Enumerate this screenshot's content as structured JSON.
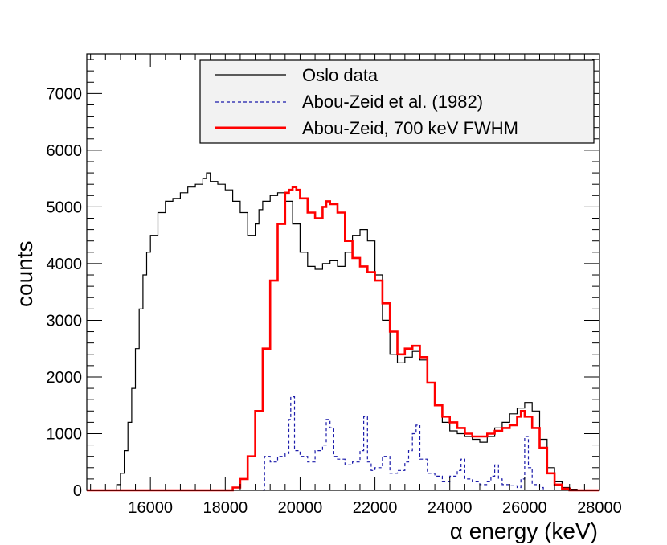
{
  "chart_data": {
    "type": "line",
    "style": "step-histogram",
    "xlabel": "α energy (keV)",
    "ylabel": "counts",
    "xlim": [
      14300,
      28000
    ],
    "ylim": [
      0,
      7700
    ],
    "xticks": [
      16000,
      18000,
      20000,
      22000,
      24000,
      26000,
      28000
    ],
    "xtick_labels": [
      "16000",
      "18000",
      "20000",
      "22000",
      "24000",
      "26000",
      "28000"
    ],
    "yticks": [
      0,
      1000,
      2000,
      3000,
      4000,
      5000,
      6000,
      7000
    ],
    "ytick_labels": [
      "0",
      "1000",
      "2000",
      "3000",
      "4000",
      "5000",
      "6000",
      "7000"
    ],
    "legend_position": "top-right",
    "series": [
      {
        "name": "Oslo data",
        "color": "#000000",
        "style": "solid",
        "x": [
          14300,
          15000,
          15100,
          15200,
          15300,
          15400,
          15500,
          15600,
          15700,
          15800,
          15900,
          16000,
          16200,
          16400,
          16600,
          16800,
          17000,
          17200,
          17400,
          17500,
          17600,
          17800,
          18000,
          18200,
          18400,
          18600,
          18800,
          18900,
          19000,
          19200,
          19400,
          19600,
          19800,
          20000,
          20200,
          20400,
          20600,
          20800,
          21000,
          21200,
          21400,
          21600,
          21800,
          22000,
          22200,
          22400,
          22600,
          22800,
          23000,
          23200,
          23400,
          23600,
          23800,
          24000,
          24200,
          24400,
          24600,
          24800,
          25000,
          25200,
          25400,
          25600,
          25800,
          26000,
          26200,
          26400,
          26600,
          26800,
          27000,
          27200,
          27400,
          27600,
          28000
        ],
        "y": [
          0,
          0,
          100,
          300,
          700,
          1200,
          1800,
          2500,
          3200,
          3800,
          4200,
          4500,
          4900,
          5100,
          5150,
          5250,
          5350,
          5400,
          5500,
          5600,
          5450,
          5400,
          5300,
          5100,
          4900,
          4500,
          4700,
          4950,
          5100,
          5200,
          5250,
          5100,
          4700,
          4200,
          3950,
          3900,
          4000,
          4050,
          3950,
          4200,
          4500,
          4600,
          4400,
          3800,
          3000,
          2400,
          2250,
          2350,
          2450,
          2300,
          1900,
          1500,
          1200,
          1050,
          1000,
          950,
          900,
          850,
          950,
          1100,
          1200,
          1350,
          1450,
          1550,
          1400,
          900,
          400,
          150,
          50,
          20,
          0,
          0,
          0
        ]
      },
      {
        "name": "Abou-Zeid et al. (1982)",
        "color": "#1a1aaa",
        "style": "dashed",
        "x": [
          19000,
          19050,
          19200,
          19400,
          19600,
          19700,
          19750,
          19850,
          20000,
          20200,
          20400,
          20600,
          20700,
          20800,
          20900,
          21000,
          21200,
          21400,
          21600,
          21700,
          21800,
          21900,
          22000,
          22200,
          22400,
          22600,
          22800,
          22900,
          23000,
          23100,
          23200,
          23400,
          23600,
          23800,
          24000,
          24200,
          24300,
          24400,
          24600,
          24800,
          25000,
          25100,
          25200,
          25300,
          25400,
          25600,
          25800,
          25900,
          26000,
          26100,
          26200,
          26400,
          26500
        ],
        "y": [
          0,
          600,
          500,
          600,
          650,
          1250,
          1650,
          700,
          600,
          500,
          700,
          800,
          1250,
          1100,
          600,
          550,
          450,
          500,
          700,
          1300,
          500,
          350,
          400,
          600,
          300,
          350,
          500,
          700,
          1000,
          1150,
          550,
          300,
          250,
          150,
          250,
          350,
          550,
          200,
          150,
          100,
          150,
          250,
          450,
          200,
          100,
          80,
          50,
          200,
          950,
          400,
          100,
          50,
          0
        ]
      },
      {
        "name": "Abou-Zeid, 700 keV FWHM",
        "color": "#ff0000",
        "style": "solid",
        "x": [
          14300,
          18000,
          18200,
          18400,
          18600,
          18800,
          19000,
          19200,
          19400,
          19600,
          19700,
          19800,
          19900,
          20000,
          20200,
          20400,
          20600,
          20700,
          20800,
          21000,
          21200,
          21400,
          21600,
          21800,
          22000,
          22200,
          22400,
          22600,
          22800,
          23000,
          23200,
          23400,
          23600,
          23800,
          24000,
          24200,
          24400,
          24600,
          24800,
          25000,
          25200,
          25400,
          25600,
          25800,
          25900,
          26000,
          26200,
          26400,
          26600,
          26800,
          27000,
          27200,
          27400,
          28000
        ],
        "y": [
          0,
          0,
          50,
          200,
          600,
          1400,
          2500,
          3700,
          4700,
          5250,
          5300,
          5350,
          5300,
          5150,
          4900,
          4800,
          5000,
          5100,
          5050,
          4900,
          4400,
          4100,
          3950,
          3850,
          3700,
          3300,
          2800,
          2400,
          2500,
          2550,
          2350,
          1900,
          1500,
          1300,
          1200,
          1100,
          1000,
          950,
          950,
          1000,
          1050,
          1100,
          1150,
          1300,
          1400,
          1300,
          1100,
          750,
          300,
          100,
          30,
          0,
          0,
          0
        ]
      }
    ]
  }
}
